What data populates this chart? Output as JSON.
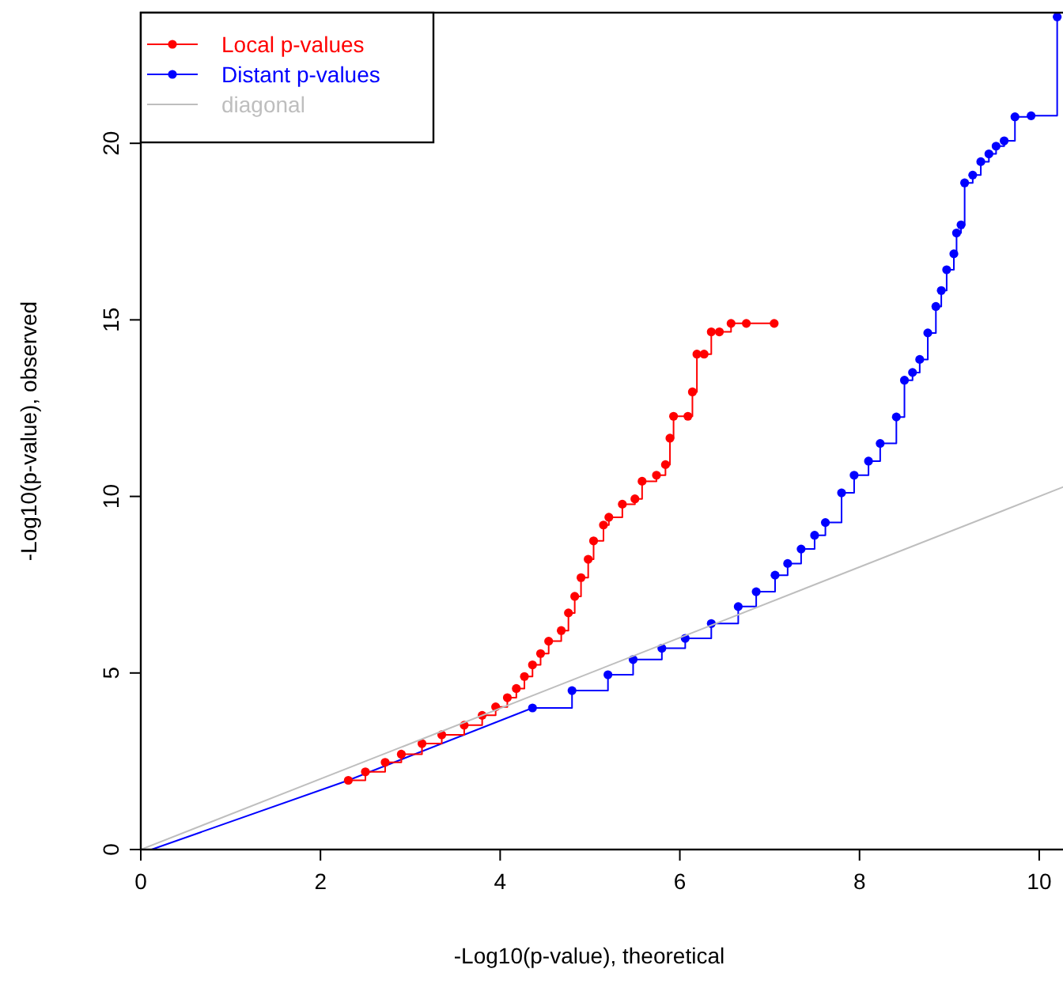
{
  "chart_data": {
    "type": "step",
    "xlabel": "-Log10(p-value), theoretical",
    "ylabel": "-Log10(p-value), observed",
    "xlim": [
      0,
      10.3
    ],
    "ylim": [
      0,
      23.7
    ],
    "xticks": [
      0,
      2,
      4,
      6,
      8,
      10
    ],
    "yticks": [
      0,
      5,
      10,
      15,
      20
    ],
    "grid": false,
    "legend": "top left",
    "series": [
      {
        "type": "line",
        "color": "#0000ff",
        "marker": "none",
        "x": [
          0.12,
          2.31,
          4.36
        ],
        "values": [
          0,
          1.96,
          4.01
        ]
      },
      {
        "name": "Local p-values",
        "color": "#ff0000",
        "marker": "circle",
        "x": [
          2.31,
          2.5,
          2.72,
          2.9,
          3.13,
          3.35,
          3.6,
          3.8,
          3.95,
          4.08,
          4.18,
          4.27,
          4.36,
          4.45,
          4.54,
          4.68,
          4.76,
          4.83,
          4.9,
          4.98,
          5.04,
          5.15,
          5.21,
          5.36,
          5.5,
          5.58,
          5.74,
          5.84,
          5.89,
          5.93,
          6.09,
          6.14,
          6.19,
          6.27,
          6.35,
          6.44,
          6.57,
          6.74,
          7.05
        ],
        "values": [
          1.96,
          2.2,
          2.47,
          2.7,
          3.0,
          3.25,
          3.52,
          3.8,
          4.04,
          4.3,
          4.56,
          4.9,
          5.23,
          5.55,
          5.9,
          6.2,
          6.7,
          7.17,
          7.7,
          8.22,
          8.74,
          9.19,
          9.41,
          9.78,
          9.93,
          10.43,
          10.6,
          10.9,
          11.65,
          12.27,
          12.27,
          12.96,
          14.03,
          14.03,
          14.66,
          14.66,
          14.9,
          14.9,
          14.9
        ]
      },
      {
        "name": "Distant p-values",
        "color": "#0000ff",
        "marker": "circle",
        "x": [
          4.36,
          4.8,
          5.2,
          5.48,
          5.8,
          6.06,
          6.35,
          6.65,
          6.85,
          7.06,
          7.2,
          7.35,
          7.5,
          7.62,
          7.8,
          7.94,
          8.1,
          8.23,
          8.41,
          8.5,
          8.59,
          8.67,
          8.76,
          8.85,
          8.91,
          8.97,
          9.05,
          9.08,
          9.13,
          9.17,
          9.26,
          9.35,
          9.44,
          9.52,
          9.61,
          9.73,
          9.91,
          10.2
        ],
        "values": [
          4.01,
          4.5,
          4.95,
          5.38,
          5.7,
          5.98,
          6.4,
          6.88,
          7.3,
          7.77,
          8.1,
          8.51,
          8.9,
          9.26,
          10.1,
          10.6,
          11.0,
          11.5,
          12.25,
          13.29,
          13.51,
          13.88,
          14.63,
          15.38,
          15.83,
          16.42,
          16.87,
          17.46,
          17.69,
          18.88,
          19.1,
          19.48,
          19.7,
          19.92,
          20.07,
          20.75,
          20.78,
          23.58
        ]
      },
      {
        "name": "diagonal",
        "type": "line",
        "color": "#bebebe",
        "marker": "none",
        "x": [
          0,
          10.3
        ],
        "values": [
          0,
          10.3
        ]
      }
    ]
  }
}
